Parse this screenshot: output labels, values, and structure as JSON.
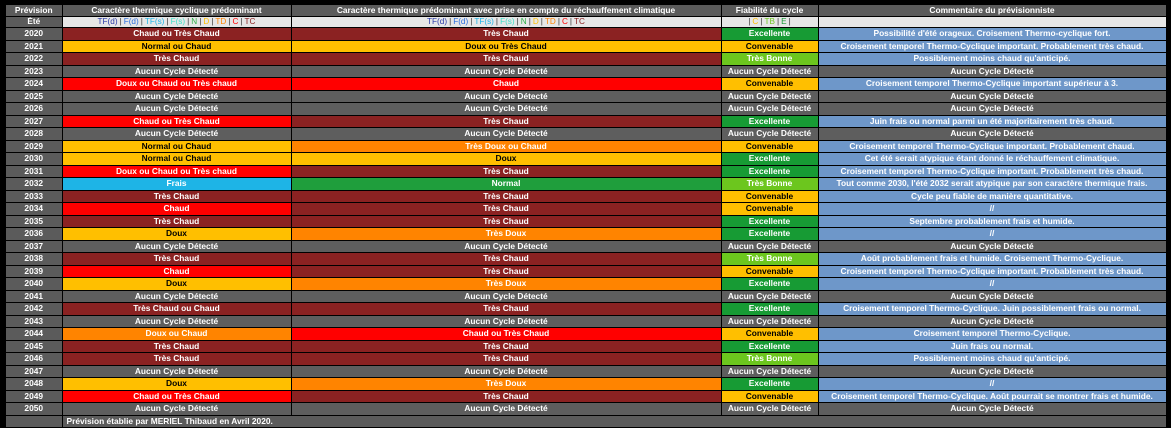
{
  "headers": {
    "year": "Prévision",
    "predominant": "Caractère thermique cyclique prédominant",
    "warming": "Caractère thermique prédominant avec prise en compte du réchauffement climatique",
    "reliability": "Fiabilité du cycle",
    "comment": "Commentaire du prévisionniste"
  },
  "subheaders": {
    "year": "Été"
  },
  "legend_thermal": [
    {
      "text": "TF(d)",
      "color": "#2a3aa8"
    },
    {
      "text": "|",
      "color": "#333"
    },
    {
      "text": "F(d)",
      "color": "#2a6ee0"
    },
    {
      "text": "|",
      "color": "#333"
    },
    {
      "text": "TF(s)",
      "color": "#1eb4e6"
    },
    {
      "text": "|",
      "color": "#333"
    },
    {
      "text": "F(s)",
      "color": "#3fe0c8"
    },
    {
      "text": "|",
      "color": "#333"
    },
    {
      "text": "N",
      "color": "#2fb24a"
    },
    {
      "text": "|",
      "color": "#333"
    },
    {
      "text": "D",
      "color": "#ffbf00"
    },
    {
      "text": "|",
      "color": "#333"
    },
    {
      "text": "TD",
      "color": "#ff8400"
    },
    {
      "text": "|",
      "color": "#333"
    },
    {
      "text": "C",
      "color": "#ff0000"
    },
    {
      "text": "|",
      "color": "#333"
    },
    {
      "text": "TC",
      "color": "#8b2222"
    }
  ],
  "legend_reliability": [
    {
      "text": "|",
      "color": "#333"
    },
    {
      "text": "C",
      "color": "#ffbf00"
    },
    {
      "text": "|",
      "color": "#333"
    },
    {
      "text": "TB",
      "color": "#6cc61e"
    },
    {
      "text": "|",
      "color": "#333"
    },
    {
      "text": "E",
      "color": "#179b34"
    },
    {
      "text": "|",
      "color": "#333"
    }
  ],
  "colors": {
    "tres_chaud": "#8b2222",
    "chaud": "#ff0000",
    "tres_doux": "#ff8400",
    "doux": "#ffbf00",
    "aucun": "#5e5e5e",
    "frais": "#1eb4e6",
    "normal": "#1f9e3c",
    "excellente": "#179b34",
    "tres_bonne": "#6cc61e",
    "convenable": "#ffbf00",
    "comment": "#6e97c9"
  },
  "rows": [
    {
      "year": "2020",
      "pred": "Chaud ou Très Chaud",
      "pc": "c-vr",
      "warm": "Très Chaud",
      "wc": "c-vr",
      "fiab": "Excellente",
      "fc": "f-ex",
      "comment": "Possibilité d'été orageux. Croisement Thermo-cyclique fort.",
      "cc": "cm"
    },
    {
      "year": "2021",
      "pred": "Normal ou Chaud",
      "pc": "c-ye",
      "warm": "Doux ou Très Chaud",
      "wc": "c-ye",
      "fiab": "Convenable",
      "fc": "f-co",
      "comment": "Croisement temporel Thermo-Cyclique important. Probablement très chaud.",
      "cc": "cm"
    },
    {
      "year": "2022",
      "pred": "Très Chaud",
      "pc": "c-vr",
      "warm": "Très Chaud",
      "wc": "c-vr",
      "fiab": "Très Bonne",
      "fc": "f-tb",
      "comment": "Possiblement moins chaud qu'anticipé.",
      "cc": "cm"
    },
    {
      "year": "2023",
      "pred": "Aucun Cycle Détecté",
      "pc": "c-gr",
      "warm": "Aucun Cycle Détecté",
      "wc": "c-gr",
      "fiab": "Aucun Cycle Détecté",
      "fc": "f-na",
      "comment": "Aucun Cycle Détecté",
      "cc": "cm-n"
    },
    {
      "year": "2024",
      "pred": "Doux ou Chaud ou Très chaud",
      "pc": "c-ro",
      "warm": "Chaud",
      "wc": "c-ro",
      "fiab": "Convenable",
      "fc": "f-co",
      "comment": "Croisement temporel Thermo-Cyclique important supérieur à 3.",
      "cc": "cm"
    },
    {
      "year": "2025",
      "pred": "Aucun Cycle Détecté",
      "pc": "c-gr",
      "warm": "Aucun Cycle Détecté",
      "wc": "c-gr",
      "fiab": "Aucun Cycle Détecté",
      "fc": "f-na",
      "comment": "Aucun Cycle Détecté",
      "cc": "cm-n"
    },
    {
      "year": "2026",
      "pred": "Aucun Cycle Détecté",
      "pc": "c-gr",
      "warm": "Aucun Cycle Détecté",
      "wc": "c-gr",
      "fiab": "Aucun Cycle Détecté",
      "fc": "f-na",
      "comment": "Aucun Cycle Détecté",
      "cc": "cm-n"
    },
    {
      "year": "2027",
      "pred": "Chaud ou Très Chaud",
      "pc": "c-ro",
      "warm": "Très Chaud",
      "wc": "c-vr",
      "fiab": "Excellente",
      "fc": "f-ex",
      "comment": "Juin frais ou normal parmi un été majoritairement très chaud.",
      "cc": "cm"
    },
    {
      "year": "2028",
      "pred": "Aucun Cycle Détecté",
      "pc": "c-gr",
      "warm": "Aucun Cycle Détecté",
      "wc": "c-gr",
      "fiab": "Aucun Cycle Détecté",
      "fc": "f-na",
      "comment": "Aucun Cycle Détecté",
      "cc": "cm-n"
    },
    {
      "year": "2029",
      "pred": "Normal ou Chaud",
      "pc": "c-ye",
      "warm": "Très Doux ou Chaud",
      "wc": "c-or",
      "fiab": "Convenable",
      "fc": "f-co",
      "comment": "Croisement temporel Thermo-Cyclique important. Probablement chaud.",
      "cc": "cm"
    },
    {
      "year": "2030",
      "pred": "Normal ou Chaud",
      "pc": "c-ye",
      "warm": "Doux",
      "wc": "c-ye",
      "fiab": "Excellente",
      "fc": "f-ex",
      "comment": "Cet été serait atypique étant donné le réchauffement climatique.",
      "cc": "cm"
    },
    {
      "year": "2031",
      "pred": "Doux ou Chaud ou Très chaud",
      "pc": "c-ro",
      "warm": "Très Chaud",
      "wc": "c-vr",
      "fiab": "Excellente",
      "fc": "f-ex",
      "comment": "Croisement temporel Thermo-Cyclique important. Probablement très chaud.",
      "cc": "cm"
    },
    {
      "year": "2032",
      "pred": "Frais",
      "pc": "c-cy",
      "warm": "Normal",
      "wc": "c-gn",
      "fiab": "Très Bonne",
      "fc": "f-tb",
      "comment": "Tout comme 2030, l'été 2032 serait atypique par son caractère thermique frais.",
      "cc": "cm"
    },
    {
      "year": "2033",
      "pred": "Très Chaud",
      "pc": "c-vr",
      "warm": "Très Chaud",
      "wc": "c-vr",
      "fiab": "Convenable",
      "fc": "f-co",
      "comment": "Cycle peu fiable de manière quantitative.",
      "cc": "cm"
    },
    {
      "year": "2034",
      "pred": "Chaud",
      "pc": "c-ro",
      "warm": "Très Chaud",
      "wc": "c-vr",
      "fiab": "Convenable",
      "fc": "f-co",
      "comment": "//",
      "cc": "cm"
    },
    {
      "year": "2035",
      "pred": "Très Chaud",
      "pc": "c-vr",
      "warm": "Très Chaud",
      "wc": "c-vr",
      "fiab": "Excellente",
      "fc": "f-ex",
      "comment": "Septembre probablement frais et humide.",
      "cc": "cm"
    },
    {
      "year": "2036",
      "pred": "Doux",
      "pc": "c-ye",
      "warm": "Très Doux",
      "wc": "c-or",
      "fiab": "Excellente",
      "fc": "f-ex",
      "comment": "//",
      "cc": "cm"
    },
    {
      "year": "2037",
      "pred": "Aucun Cycle Détecté",
      "pc": "c-gr",
      "warm": "Aucun Cycle Détecté",
      "wc": "c-gr",
      "fiab": "Aucun Cycle Détecté",
      "fc": "f-na",
      "comment": "Aucun Cycle Détecté",
      "cc": "cm-n"
    },
    {
      "year": "2038",
      "pred": "Très Chaud",
      "pc": "c-vr",
      "warm": "Très Chaud",
      "wc": "c-vr",
      "fiab": "Très Bonne",
      "fc": "f-tb",
      "comment": "Août probablement frais et humide. Croisement Thermo-Cyclique.",
      "cc": "cm"
    },
    {
      "year": "2039",
      "pred": "Chaud",
      "pc": "c-ro",
      "warm": "Très Chaud",
      "wc": "c-vr",
      "fiab": "Convenable",
      "fc": "f-co",
      "comment": "Croisement temporel Thermo-Cyclique important. Probablement très chaud.",
      "cc": "cm"
    },
    {
      "year": "2040",
      "pred": "Doux",
      "pc": "c-ye",
      "warm": "Très Doux",
      "wc": "c-or",
      "fiab": "Excellente",
      "fc": "f-ex",
      "comment": "//",
      "cc": "cm"
    },
    {
      "year": "2041",
      "pred": "Aucun Cycle Détecté",
      "pc": "c-gr",
      "warm": "Aucun Cycle Détecté",
      "wc": "c-gr",
      "fiab": "Aucun Cycle Détecté",
      "fc": "f-na",
      "comment": "Aucun Cycle Détecté",
      "cc": "cm-n"
    },
    {
      "year": "2042",
      "pred": "Très Chaud ou Chaud",
      "pc": "c-vr",
      "warm": "Très Chaud",
      "wc": "c-vr",
      "fiab": "Excellente",
      "fc": "f-ex",
      "comment": "Croisement temporel Thermo-Cyclique. Juin possiblement frais ou normal.",
      "cc": "cm"
    },
    {
      "year": "2043",
      "pred": "Aucun Cycle Détecté",
      "pc": "c-gr",
      "warm": "Aucun Cycle Détecté",
      "wc": "c-gr",
      "fiab": "Aucun Cycle Détecté",
      "fc": "f-na",
      "comment": "Aucun Cycle Détecté",
      "cc": "cm-n"
    },
    {
      "year": "2044",
      "pred": "Doux ou Chaud",
      "pc": "c-or",
      "warm": "Chaud ou Très Chaud",
      "wc": "c-ro",
      "fiab": "Convenable",
      "fc": "f-co",
      "comment": "Croisement temporel Thermo-Cyclique.",
      "cc": "cm"
    },
    {
      "year": "2045",
      "pred": "Très Chaud",
      "pc": "c-vr",
      "warm": "Très Chaud",
      "wc": "c-vr",
      "fiab": "Excellente",
      "fc": "f-ex",
      "comment": "Juin frais ou normal.",
      "cc": "cm"
    },
    {
      "year": "2046",
      "pred": "Très Chaud",
      "pc": "c-vr",
      "warm": "Très Chaud",
      "wc": "c-vr",
      "fiab": "Très Bonne",
      "fc": "f-tb",
      "comment": "Possiblement moins chaud qu'anticipé.",
      "cc": "cm"
    },
    {
      "year": "2047",
      "pred": "Aucun Cycle Détecté",
      "pc": "c-gr",
      "warm": "Aucun Cycle Détecté",
      "wc": "c-gr",
      "fiab": "Aucun Cycle Détecté",
      "fc": "f-na",
      "comment": "Aucun Cycle Détecté",
      "cc": "cm-n"
    },
    {
      "year": "2048",
      "pred": "Doux",
      "pc": "c-ye",
      "warm": "Très Doux",
      "wc": "c-or",
      "fiab": "Excellente",
      "fc": "f-ex",
      "comment": "//",
      "cc": "cm"
    },
    {
      "year": "2049",
      "pred": "Chaud ou Très Chaud",
      "pc": "c-ro",
      "warm": "Très Chaud",
      "wc": "c-vr",
      "fiab": "Convenable",
      "fc": "f-co",
      "comment": "Croisement temporel Thermo-Cyclique. Août pourrait se montrer frais et humide.",
      "cc": "cm"
    },
    {
      "year": "2050",
      "pred": "Aucun Cycle Détecté",
      "pc": "c-gr",
      "warm": "Aucun Cycle Détecté",
      "wc": "c-gr",
      "fiab": "Aucun Cycle Détecté",
      "fc": "f-na",
      "comment": "Aucun Cycle Détecté",
      "cc": "cm-n"
    }
  ],
  "footer": "Prévision établie par MERIEL Thibaud en Avril 2020."
}
